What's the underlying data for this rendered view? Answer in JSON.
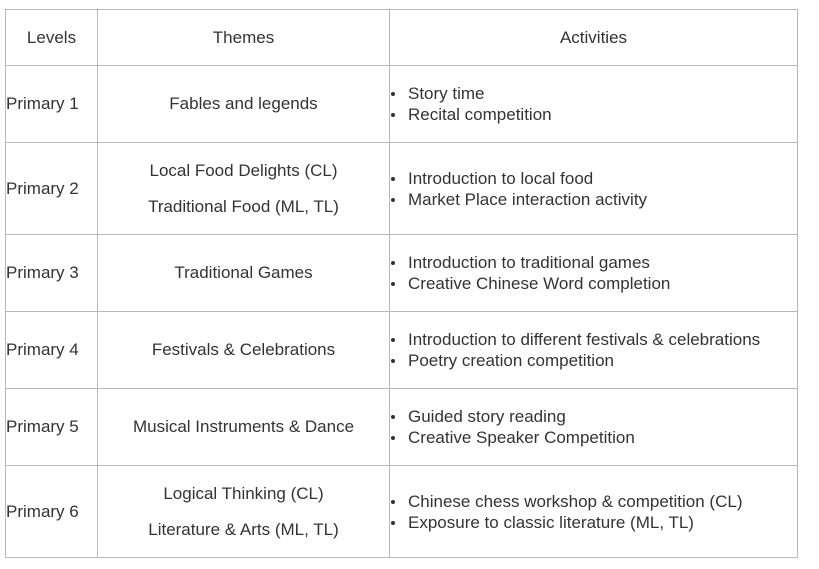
{
  "headers": {
    "levels": "Levels",
    "themes": "Themes",
    "activities": "Activities"
  },
  "rows": [
    {
      "level": "Primary 1",
      "themes": [
        "Fables and legends"
      ],
      "activities": [
        "Story time",
        "Recital competition"
      ]
    },
    {
      "level": "Primary 2",
      "themes": [
        "Local Food Delights (CL)",
        "Traditional Food (ML, TL)"
      ],
      "activities": [
        "Introduction to local food",
        "Market Place interaction activity"
      ]
    },
    {
      "level": "Primary 3",
      "themes": [
        "Traditional Games"
      ],
      "activities": [
        "Introduction to traditional games",
        "Creative Chinese Word completion"
      ]
    },
    {
      "level": "Primary 4",
      "themes": [
        "Festivals & Celebrations"
      ],
      "activities": [
        "Introduction to different festivals & celebrations",
        "Poetry creation competition"
      ]
    },
    {
      "level": "Primary 5",
      "themes": [
        "Musical Instruments & Dance"
      ],
      "activities": [
        "Guided story reading",
        "Creative Speaker Competition"
      ]
    },
    {
      "level": "Primary 6",
      "themes": [
        "Logical Thinking (CL)",
        "Literature & Arts (ML, TL)"
      ],
      "activities": [
        "Chinese chess workshop & competition (CL)",
        "Exposure to classic literature (ML, TL)"
      ]
    }
  ]
}
